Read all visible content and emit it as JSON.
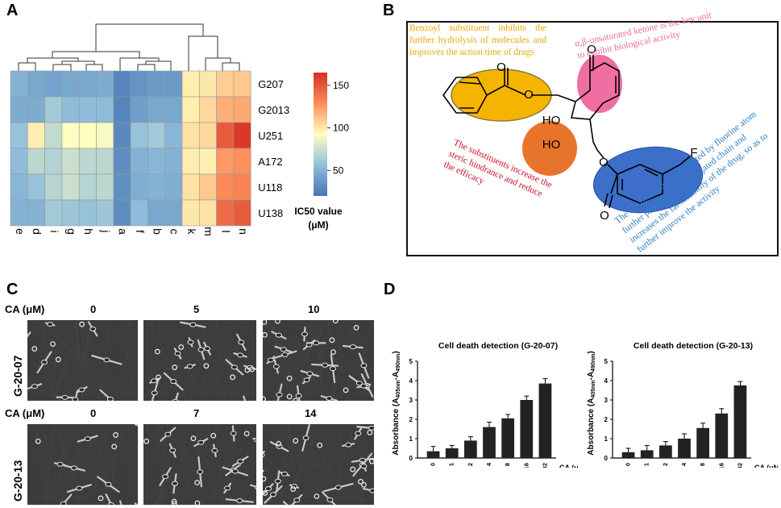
{
  "panels": {
    "a": "A",
    "b": "B",
    "c": "C",
    "d": "D"
  },
  "heatmap": {
    "rows": [
      "G207",
      "G2013",
      "U251",
      "A172",
      "U118",
      "U138"
    ],
    "columns": [
      "e",
      "d",
      "i",
      "g",
      "h",
      "j",
      "a",
      "f",
      "b",
      "c",
      "k",
      "m",
      "l",
      "n"
    ],
    "values": [
      [
        50,
        45,
        42,
        45,
        45,
        47,
        28,
        35,
        38,
        38,
        98,
        100,
        108,
        110
      ],
      [
        47,
        47,
        62,
        55,
        55,
        55,
        28,
        40,
        45,
        45,
        98,
        105,
        118,
        120
      ],
      [
        58,
        98,
        72,
        92,
        92,
        90,
        30,
        58,
        62,
        52,
        102,
        105,
        148,
        162
      ],
      [
        55,
        70,
        67,
        75,
        70,
        70,
        32,
        50,
        52,
        50,
        98,
        97,
        125,
        128
      ],
      [
        52,
        58,
        68,
        75,
        68,
        70,
        33,
        48,
        50,
        48,
        102,
        110,
        130,
        132
      ],
      [
        50,
        50,
        62,
        60,
        58,
        60,
        32,
        55,
        45,
        45,
        100,
        102,
        142,
        148
      ]
    ],
    "colorbar_ticks": [
      "150",
      "100",
      "50"
    ],
    "colorbar_range": [
      20,
      165
    ],
    "legend_title": "IC50 value",
    "legend_unit": "(μM)"
  },
  "structure": {
    "note_yellow": "Benzoyl substituent inhibits the further hydrolysis of molecules and improves the action time of drugs",
    "note_pink": "α,β-unsaturated ketone is the key unit to exhibit biological activity",
    "note_red": "The substituents increase the steric hindrance and reduce the efficacy",
    "note_blue": "The benzoyl group substituted by fluorine atom further prolongs the conjugated chain and increases the fat solubility of the drug, so as to further improve the activity",
    "atom_o": "O",
    "atom_ho": "HO",
    "atom_f": "F",
    "colors": {
      "yellow": "#f5b400",
      "pink": "#f06fa2",
      "orange": "#e8742b",
      "blue": "#3d6ec9"
    }
  },
  "micrographs": {
    "row1": {
      "ca_label": "CA (μM)",
      "line": "G-20-07",
      "doses": [
        "0",
        "5",
        "10"
      ]
    },
    "row2": {
      "ca_label": "CA (μM)",
      "line": "G-20-13",
      "doses": [
        "0",
        "7",
        "14"
      ]
    }
  },
  "chart_data": [
    {
      "type": "bar",
      "title": "Cell death detection (G-20-07)",
      "categories": [
        "0",
        "1",
        "2",
        "4",
        "8",
        "16",
        "32"
      ],
      "values": [
        0.35,
        0.5,
        0.9,
        1.6,
        2.05,
        3.0,
        3.85
      ],
      "errors": [
        0.25,
        0.15,
        0.2,
        0.25,
        0.2,
        0.2,
        0.25
      ],
      "xlabel": "CA (μM)",
      "ylabel_main": "Absorbance (A",
      "ylabel_sub1": "405nm",
      "ylabel_mid": "-A",
      "ylabel_sub2": "490nm",
      "ylabel_end": ")",
      "yticks": [
        "0",
        "1",
        "2",
        "3",
        "4",
        "5"
      ],
      "ylim": [
        0,
        5
      ]
    },
    {
      "type": "bar",
      "title": "Cell death detection (G-20-13)",
      "categories": [
        "0",
        "1",
        "2",
        "4",
        "8",
        "16",
        "32"
      ],
      "values": [
        0.3,
        0.4,
        0.65,
        1.0,
        1.55,
        2.3,
        3.75
      ],
      "errors": [
        0.2,
        0.25,
        0.2,
        0.25,
        0.25,
        0.25,
        0.2
      ],
      "xlabel": "CA (μM)",
      "ylabel_main": "Absorbance (A",
      "ylabel_sub1": "405nm",
      "ylabel_mid": "-A",
      "ylabel_sub2": "490nm",
      "ylabel_end": ")",
      "yticks": [
        "0",
        "1",
        "2",
        "3",
        "4",
        "5"
      ],
      "ylim": [
        0,
        5
      ]
    }
  ]
}
